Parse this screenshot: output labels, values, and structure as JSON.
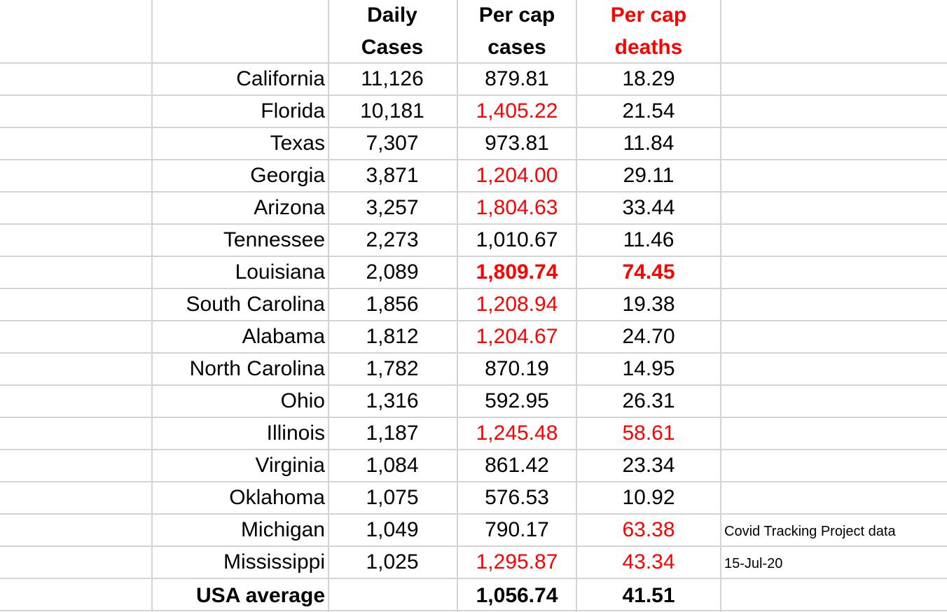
{
  "header": {
    "daily_cases": [
      "Daily",
      "Cases"
    ],
    "per_cap_cases": [
      "Per cap",
      "cases"
    ],
    "per_cap_deaths": [
      "Per cap",
      "deaths"
    ]
  },
  "rows": [
    {
      "state": "California",
      "daily": "11,126",
      "per_cap_cases": "879.81",
      "per_cap_deaths": "18.29",
      "cases_style": "",
      "deaths_style": ""
    },
    {
      "state": "Florida",
      "daily": "10,181",
      "per_cap_cases": "1,405.22",
      "per_cap_deaths": "21.54",
      "cases_style": "red",
      "deaths_style": ""
    },
    {
      "state": "Texas",
      "daily": "7,307",
      "per_cap_cases": "973.81",
      "per_cap_deaths": "11.84",
      "cases_style": "",
      "deaths_style": ""
    },
    {
      "state": "Georgia",
      "daily": "3,871",
      "per_cap_cases": "1,204.00",
      "per_cap_deaths": "29.11",
      "cases_style": "red",
      "deaths_style": ""
    },
    {
      "state": "Arizona",
      "daily": "3,257",
      "per_cap_cases": "1,804.63",
      "per_cap_deaths": "33.44",
      "cases_style": "red",
      "deaths_style": ""
    },
    {
      "state": "Tennessee",
      "daily": "2,273",
      "per_cap_cases": "1,010.67",
      "per_cap_deaths": "11.46",
      "cases_style": "",
      "deaths_style": ""
    },
    {
      "state": "Louisiana",
      "daily": "2,089",
      "per_cap_cases": "1,809.74",
      "per_cap_deaths": "74.45",
      "cases_style": "red-bold",
      "deaths_style": "red-bold"
    },
    {
      "state": "South Carolina",
      "daily": "1,856",
      "per_cap_cases": "1,208.94",
      "per_cap_deaths": "19.38",
      "cases_style": "red",
      "deaths_style": ""
    },
    {
      "state": "Alabama",
      "daily": "1,812",
      "per_cap_cases": "1,204.67",
      "per_cap_deaths": "24.70",
      "cases_style": "red",
      "deaths_style": ""
    },
    {
      "state": "North Carolina",
      "daily": "1,782",
      "per_cap_cases": "870.19",
      "per_cap_deaths": "14.95",
      "cases_style": "",
      "deaths_style": ""
    },
    {
      "state": "Ohio",
      "daily": "1,316",
      "per_cap_cases": "592.95",
      "per_cap_deaths": "26.31",
      "cases_style": "",
      "deaths_style": ""
    },
    {
      "state": "Illinois",
      "daily": "1,187",
      "per_cap_cases": "1,245.48",
      "per_cap_deaths": "58.61",
      "cases_style": "red",
      "deaths_style": "red"
    },
    {
      "state": "Virginia",
      "daily": "1,084",
      "per_cap_cases": "861.42",
      "per_cap_deaths": "23.34",
      "cases_style": "",
      "deaths_style": ""
    },
    {
      "state": "Oklahoma",
      "daily": "1,075",
      "per_cap_cases": "576.53",
      "per_cap_deaths": "10.92",
      "cases_style": "",
      "deaths_style": ""
    },
    {
      "state": "Michigan",
      "daily": "1,049",
      "per_cap_cases": "790.17",
      "per_cap_deaths": "63.38",
      "cases_style": "",
      "deaths_style": "red"
    },
    {
      "state": "Mississippi",
      "daily": "1,025",
      "per_cap_cases": "1,295.87",
      "per_cap_deaths": "43.34",
      "cases_style": "red",
      "deaths_style": "red"
    }
  ],
  "average": {
    "label": "USA average",
    "per_cap_cases": "1,056.74",
    "per_cap_deaths": "41.51"
  },
  "notes": {
    "source": "Covid Tracking Project data",
    "date": "15-Jul-20"
  },
  "colors": {
    "highlight": "#ff0000",
    "gridline": "#d4d4d4"
  }
}
